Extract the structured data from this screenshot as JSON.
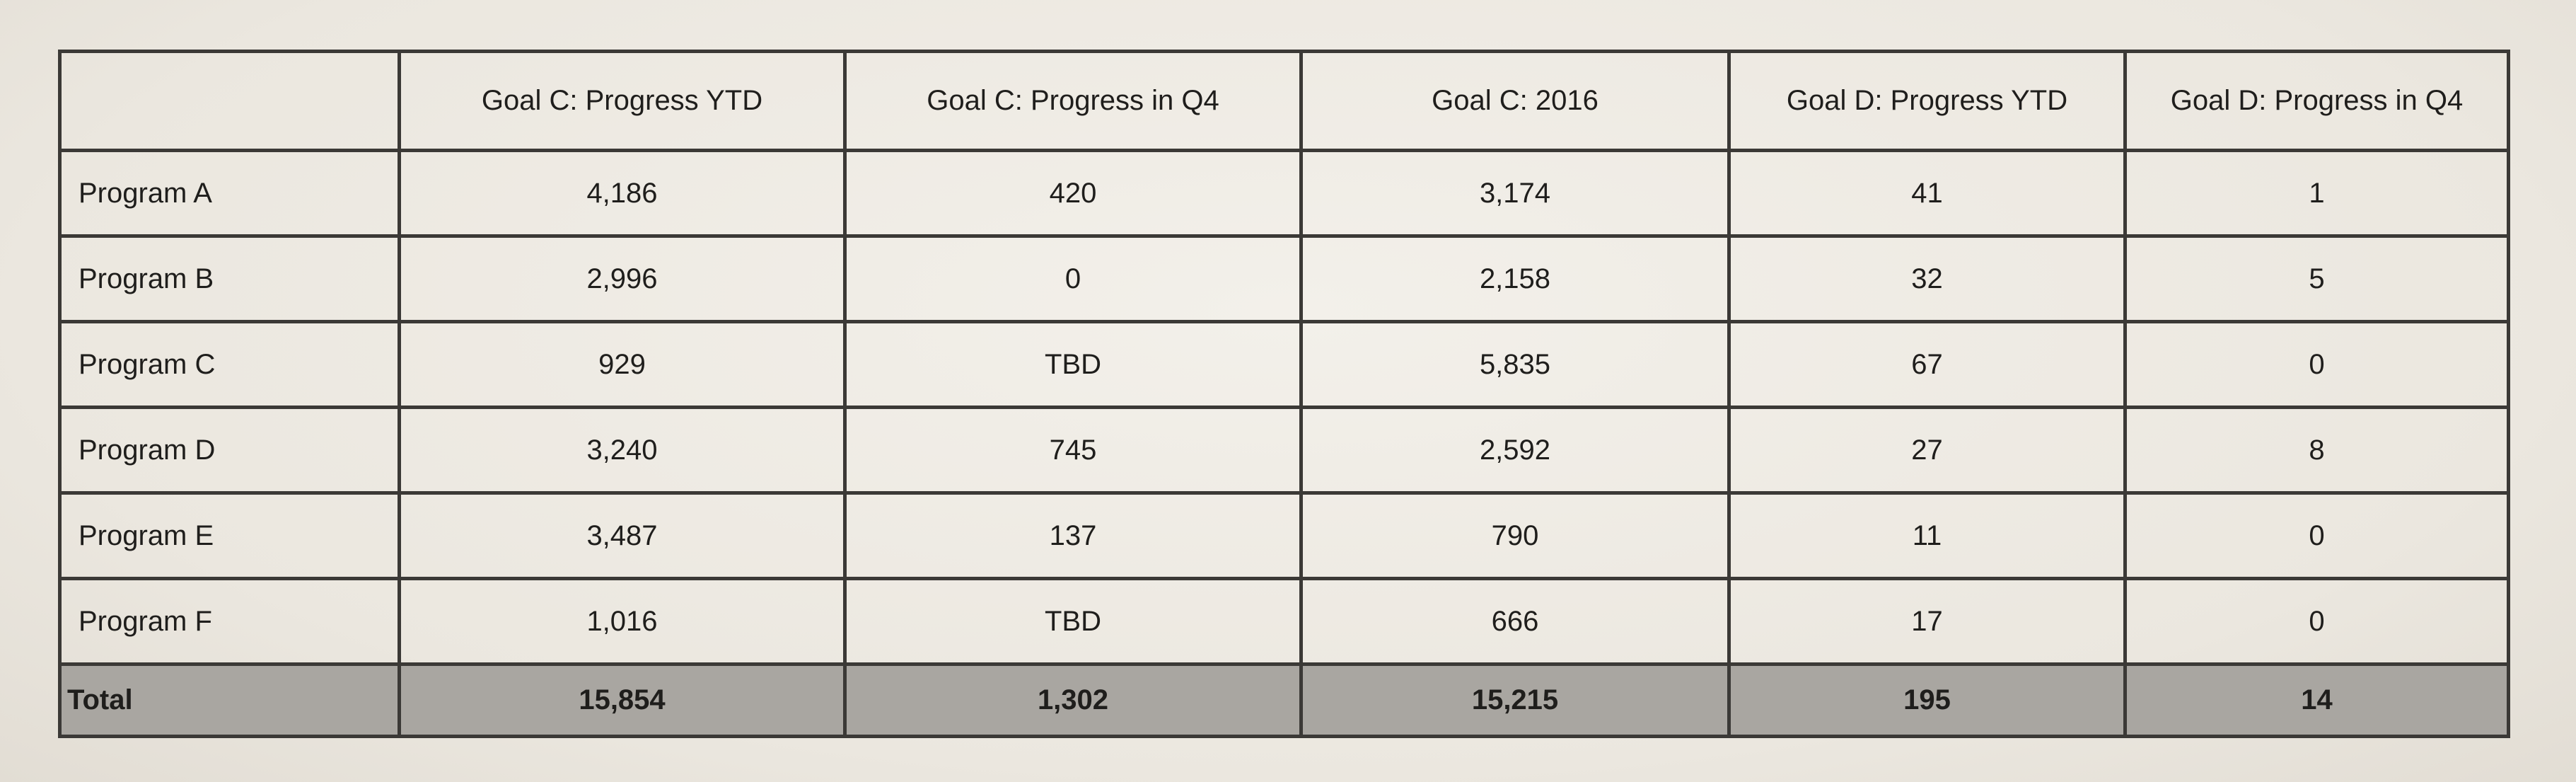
{
  "table": {
    "headers": [
      "",
      "Goal C: Progress YTD",
      "Goal C: Progress in Q4",
      "Goal C: 2016",
      "Goal D: Progress YTD",
      "Goal D: Progress in Q4"
    ],
    "rows": [
      [
        "Program A",
        "4,186",
        "420",
        "3,174",
        "41",
        "1"
      ],
      [
        "Program B",
        "2,996",
        "0",
        "2,158",
        "32",
        "5"
      ],
      [
        "Program C",
        "929",
        "TBD",
        "5,835",
        "67",
        "0"
      ],
      [
        "Program D",
        "3,240",
        "745",
        "2,592",
        "27",
        "8"
      ],
      [
        "Program E",
        "3,487",
        "137",
        "790",
        "11",
        "0"
      ],
      [
        "Program F",
        "1,016",
        "TBD",
        "666",
        "17",
        "0"
      ]
    ],
    "total": [
      "Total",
      "15,854",
      "1,302",
      "15,215",
      "195",
      "14"
    ]
  }
}
